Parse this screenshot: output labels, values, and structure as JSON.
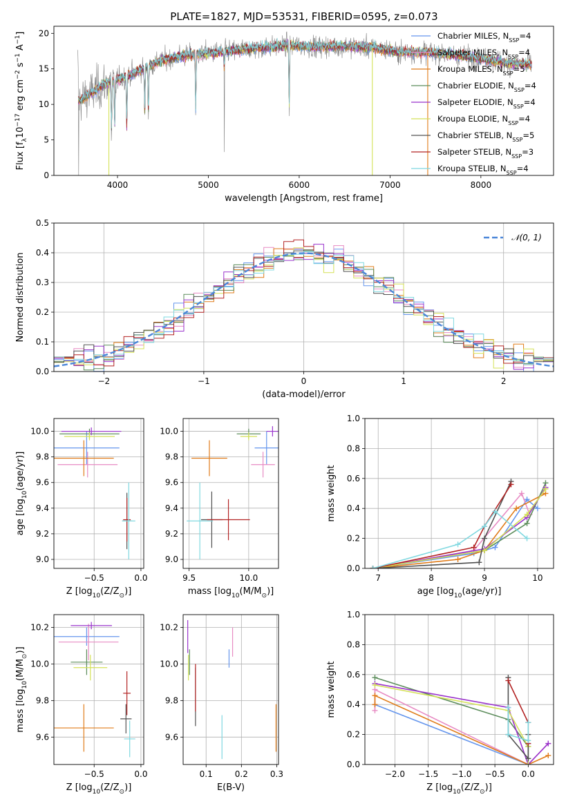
{
  "chart_data": [
    {
      "id": "spectrum",
      "type": "line",
      "title": "PLATE=1827, MJD=53531, FIBERID=0595, z=0.073",
      "xlabel": "wavelength [Angstrom, rest frame]",
      "ylabel": "Flux [f$_\\lambda$10$^{-17}$ erg cm$^{-2}$ s$^{-1}$ A$^{-1}$]",
      "xlim": [
        3300,
        8800
      ],
      "ylim": [
        0,
        21
      ],
      "xticks": [
        4000,
        5000,
        6000,
        7000,
        8000
      ],
      "yticks": [
        0,
        5,
        10,
        15,
        20
      ],
      "grid": false,
      "legend_position": "lower-right",
      "observed_color": "#808080",
      "continuum": [
        [
          3570,
          10.5
        ],
        [
          3700,
          11.5
        ],
        [
          3850,
          12.8
        ],
        [
          4000,
          13.5
        ],
        [
          4150,
          14.2
        ],
        [
          4300,
          15.2
        ],
        [
          4500,
          16.2
        ],
        [
          4700,
          16.8
        ],
        [
          5000,
          17.2
        ],
        [
          5300,
          17.6
        ],
        [
          5600,
          18.0
        ],
        [
          5900,
          18.3
        ],
        [
          6200,
          18.1
        ],
        [
          6500,
          18.2
        ],
        [
          6800,
          18.0
        ],
        [
          7100,
          17.4
        ],
        [
          7400,
          17.3
        ],
        [
          7700,
          17.0
        ],
        [
          8000,
          16.5
        ],
        [
          8300,
          15.8
        ],
        [
          8550,
          15.6
        ]
      ],
      "absorption_lines": [
        [
          3934,
          12.0
        ],
        [
          3969,
          11.5
        ],
        [
          4102,
          13.0
        ],
        [
          4300,
          12.0
        ],
        [
          4340,
          12.0
        ],
        [
          4861,
          14.0
        ],
        [
          5175,
          4.0
        ],
        [
          5890,
          15.0
        ]
      ],
      "series": [
        {
          "name": "Chabrier MILES, N$_{SSP}$=4",
          "color": "#6495ed"
        },
        {
          "name": "Salpeter MILES, N$_{SSP}$=4",
          "color": "#e78ac3"
        },
        {
          "name": "Kroupa MILES, N$_{SSP}$=5",
          "color": "#e07b18"
        },
        {
          "name": "Chabrier ELODIE, N$_{SSP}$=4",
          "color": "#5b8c5a"
        },
        {
          "name": "Salpeter ELODIE, N$_{SSP}$=4",
          "color": "#9932cc"
        },
        {
          "name": "Kroupa ELODIE, N$_{SSP}$=4",
          "color": "#d4e157"
        },
        {
          "name": "Chabrier STELIB, N$_{SSP}$=5",
          "color": "#505050"
        },
        {
          "name": "Salpeter STELIB, N$_{SSP}$=3",
          "color": "#b22222"
        },
        {
          "name": "Kroupa STELIB, N$_{SSP}$=4",
          "color": "#7fd8e0"
        }
      ]
    },
    {
      "id": "residuals",
      "type": "line",
      "xlabel": "(data-model)/error",
      "ylabel": "Normed distribution",
      "xlim": [
        -2.5,
        2.5
      ],
      "ylim": [
        0,
        0.5
      ],
      "xticks": [
        -2,
        -1,
        0,
        1,
        2
      ],
      "yticks": [
        0.0,
        0.1,
        0.2,
        0.3,
        0.4,
        0.5
      ],
      "grid": true,
      "legend_position": "top-right",
      "legend": "$\\mathcal{N}(0,1)$",
      "normal_color": "#4a86d8",
      "bin_width": 0.1,
      "bin_start": -2.5
    },
    {
      "id": "age-vs-Z",
      "type": "scatter",
      "xlabel": "Z [log$_{10}$($Z/Z_\\odot$)]",
      "ylabel": "age  [log$_{10}$($age/yr$)]",
      "xlim": [
        -0.93,
        0.03
      ],
      "ylim": [
        8.93,
        10.1
      ],
      "xticks": [
        -0.5,
        0.0
      ],
      "xticklabels": [
        "−0.5",
        "0.0"
      ],
      "yticks": [
        9.0,
        9.2,
        9.4,
        9.6,
        9.8,
        10.0
      ],
      "grid": true,
      "points": [
        {
          "x": -0.58,
          "xerr": 0.35,
          "y": 9.87,
          "yerr": 0.13,
          "color": "#6495ed"
        },
        {
          "x": -0.57,
          "xerr": 0.32,
          "y": 9.74,
          "yerr": 0.1,
          "color": "#e78ac3"
        },
        {
          "x": -0.61,
          "xerr": 0.32,
          "y": 9.79,
          "yerr": 0.14,
          "color": "#e07b18"
        },
        {
          "x": -0.55,
          "xerr": 0.32,
          "y": 9.98,
          "yerr": 0.04,
          "color": "#5b8c5a"
        },
        {
          "x": -0.53,
          "xerr": 0.32,
          "y": 10.0,
          "yerr": 0.03,
          "color": "#9932cc"
        },
        {
          "x": -0.55,
          "xerr": 0.27,
          "y": 9.96,
          "yerr": 0.03,
          "color": "#d4e157"
        },
        {
          "x": -0.15,
          "xerr": 0.05,
          "y": 9.3,
          "yerr": 0.22,
          "color": "#505050"
        },
        {
          "x": -0.15,
          "xerr": 0.04,
          "y": 9.31,
          "yerr": 0.17,
          "color": "#b22222"
        },
        {
          "x": -0.13,
          "xerr": 0.07,
          "y": 9.3,
          "yerr": 0.3,
          "color": "#7fd8e0"
        }
      ]
    },
    {
      "id": "age-vs-mass",
      "type": "scatter",
      "xlabel": "mass [log$_{10}$($M/M_\\odot$)]",
      "ylabel": "",
      "xlim": [
        9.45,
        10.25
      ],
      "ylim": [
        8.93,
        10.1
      ],
      "xticks": [
        9.5,
        10.0
      ],
      "xticklabels": [
        "9.5",
        "10.0"
      ],
      "yticks": [
        9.0,
        9.2,
        9.4,
        9.6,
        9.8,
        10.0
      ],
      "grid": true,
      "points": [
        {
          "x": 10.15,
          "xerr": 0.1,
          "y": 9.87,
          "yerr": 0.13,
          "color": "#6495ed"
        },
        {
          "x": 10.12,
          "xerr": 0.1,
          "y": 9.74,
          "yerr": 0.1,
          "color": "#e78ac3"
        },
        {
          "x": 9.67,
          "xerr": 0.15,
          "y": 9.79,
          "yerr": 0.14,
          "color": "#e07b18"
        },
        {
          "x": 10.0,
          "xerr": 0.1,
          "y": 9.98,
          "yerr": 0.04,
          "color": "#5b8c5a"
        },
        {
          "x": 10.2,
          "xerr": 0.05,
          "y": 10.0,
          "yerr": 0.04,
          "color": "#9932cc"
        },
        {
          "x": 10.0,
          "xerr": 0.07,
          "y": 9.96,
          "yerr": 0.03,
          "color": "#d4e157"
        },
        {
          "x": 9.69,
          "xerr": 0.09,
          "y": 9.31,
          "yerr": 0.22,
          "color": "#505050"
        },
        {
          "x": 9.83,
          "xerr": 0.18,
          "y": 9.31,
          "yerr": 0.16,
          "color": "#b22222"
        },
        {
          "x": 9.59,
          "xerr": 0.11,
          "y": 9.3,
          "yerr": 0.3,
          "color": "#7fd8e0"
        }
      ]
    },
    {
      "id": "weight-vs-age",
      "type": "line",
      "xlabel": "age  [log$_{10}$($age/yr$)]",
      "ylabel": "mass weight",
      "xlim": [
        6.75,
        10.3
      ],
      "ylim": [
        0,
        1
      ],
      "xticks": [
        7,
        8,
        9,
        10
      ],
      "yticks": [
        0.0,
        0.2,
        0.4,
        0.6,
        0.8,
        1.0
      ],
      "grid": true,
      "series": [
        {
          "color": "#6495ed",
          "x": [
            6.9,
            8.8,
            9.2,
            9.8,
            10.0
          ],
          "y": [
            0.0,
            0.1,
            0.14,
            0.46,
            0.4
          ]
        },
        {
          "color": "#e78ac3",
          "x": [
            6.9,
            8.8,
            9.7,
            9.85
          ],
          "y": [
            0.0,
            0.12,
            0.5,
            0.36
          ]
        },
        {
          "color": "#e07b18",
          "x": [
            6.9,
            8.5,
            9.0,
            9.6,
            10.15
          ],
          "y": [
            0.0,
            0.06,
            0.12,
            0.4,
            0.5
          ]
        },
        {
          "color": "#5b8c5a",
          "x": [
            6.9,
            9.0,
            9.8,
            10.15
          ],
          "y": [
            0.0,
            0.12,
            0.3,
            0.57
          ]
        },
        {
          "color": "#9932cc",
          "x": [
            6.9,
            9.0,
            9.8,
            10.15
          ],
          "y": [
            0.0,
            0.13,
            0.34,
            0.54
          ]
        },
        {
          "color": "#d4e157",
          "x": [
            6.9,
            9.0,
            9.8,
            10.15
          ],
          "y": [
            0.0,
            0.12,
            0.36,
            0.53
          ]
        },
        {
          "color": "#505050",
          "x": [
            6.9,
            8.9,
            9.0,
            9.5
          ],
          "y": [
            0.0,
            0.04,
            0.2,
            0.58
          ]
        },
        {
          "color": "#b22222",
          "x": [
            6.9,
            8.8,
            9.0,
            9.5
          ],
          "y": [
            0.0,
            0.14,
            0.28,
            0.56
          ]
        },
        {
          "color": "#7fd8e0",
          "x": [
            6.9,
            8.5,
            9.0,
            9.2,
            9.8
          ],
          "y": [
            0.0,
            0.16,
            0.28,
            0.38,
            0.2
          ]
        }
      ]
    },
    {
      "id": "mass-vs-Z",
      "type": "scatter",
      "xlabel": "Z [log$_{10}$($Z/Z_\\odot$)]",
      "ylabel": "mass [log$_{10}$($M/M_\\odot$)]",
      "xlim": [
        -0.93,
        0.03
      ],
      "ylim": [
        9.45,
        10.27
      ],
      "xticks": [
        -0.5,
        0.0
      ],
      "xticklabels": [
        "−0.5",
        "0.0"
      ],
      "yticks": [
        9.6,
        9.8,
        10.0,
        10.2
      ],
      "grid": true,
      "points": [
        {
          "x": -0.58,
          "xerr": 0.35,
          "y": 10.15,
          "yerr": 0.05,
          "color": "#6495ed"
        },
        {
          "x": -0.56,
          "xerr": 0.32,
          "y": 10.12,
          "yerr": 0.1,
          "color": "#e78ac3"
        },
        {
          "x": -0.61,
          "xerr": 0.32,
          "y": 9.65,
          "yerr": 0.13,
          "color": "#e07b18"
        },
        {
          "x": -0.58,
          "xerr": 0.17,
          "y": 10.01,
          "yerr": 0.07,
          "color": "#5b8c5a"
        },
        {
          "x": -0.53,
          "xerr": 0.22,
          "y": 10.21,
          "yerr": 0.02,
          "color": "#9932cc"
        },
        {
          "x": -0.54,
          "xerr": 0.18,
          "y": 9.98,
          "yerr": 0.07,
          "color": "#d4e157"
        },
        {
          "x": -0.16,
          "xerr": 0.06,
          "y": 9.7,
          "yerr": 0.08,
          "color": "#505050"
        },
        {
          "x": -0.15,
          "xerr": 0.04,
          "y": 9.84,
          "yerr": 0.12,
          "color": "#b22222"
        },
        {
          "x": -0.12,
          "xerr": 0.06,
          "y": 9.59,
          "yerr": 0.1,
          "color": "#7fd8e0"
        }
      ]
    },
    {
      "id": "mass-vs-ebv",
      "type": "scatter",
      "xlabel": "E(B-V)",
      "ylabel": "",
      "xlim": [
        0.035,
        0.305
      ],
      "ylim": [
        9.45,
        10.27
      ],
      "xticks": [
        0.1,
        0.2,
        0.3
      ],
      "xticklabels": [
        "0.1",
        "0.2",
        "0.3"
      ],
      "yticks": [
        9.6,
        9.8,
        10.0,
        10.2
      ],
      "grid": true,
      "points": [
        {
          "x": 0.165,
          "y": 10.03,
          "yerr": 0.05,
          "color": "#6495ed"
        },
        {
          "x": 0.175,
          "y": 10.12,
          "yerr": 0.08,
          "color": "#e78ac3"
        },
        {
          "x": 0.298,
          "y": 9.65,
          "yerr": 0.13,
          "color": "#e07b18"
        },
        {
          "x": 0.053,
          "y": 10.01,
          "yerr": 0.07,
          "color": "#5b8c5a"
        },
        {
          "x": 0.048,
          "y": 10.15,
          "yerr": 0.09,
          "color": "#9932cc"
        },
        {
          "x": 0.05,
          "y": 9.98,
          "yerr": 0.07,
          "color": "#d4e157"
        },
        {
          "x": 0.07,
          "y": 9.82,
          "yerr": 0.16,
          "color": "#505050"
        },
        {
          "x": 0.07,
          "y": 9.87,
          "yerr": 0.13,
          "color": "#b22222"
        },
        {
          "x": 0.145,
          "y": 9.6,
          "yerr": 0.12,
          "color": "#7fd8e0"
        }
      ]
    },
    {
      "id": "weight-vs-Z",
      "type": "line",
      "xlabel": "Z [log$_{10}$($Z/Z_\\odot$)]",
      "ylabel": "mass weight",
      "xlim": [
        -2.45,
        0.38
      ],
      "ylim": [
        0,
        1
      ],
      "xticks": [
        -2.0,
        -1.5,
        -1.0,
        -0.5,
        0.0
      ],
      "xticklabels": [
        "−2.0",
        "−1.5",
        "−1.0",
        "−0.5",
        "0.0"
      ],
      "yticks": [
        0.0,
        0.2,
        0.4,
        0.6,
        0.8,
        1.0
      ],
      "grid": true,
      "series": [
        {
          "color": "#6495ed",
          "x": [
            -2.3,
            0.0,
            0.0
          ],
          "y": [
            0.4,
            0.0,
            0.14
          ]
        },
        {
          "color": "#e78ac3",
          "x": [
            -2.3,
            -2.3,
            0.0,
            0.3
          ],
          "y": [
            0.36,
            0.5,
            0.0,
            0.14
          ]
        },
        {
          "color": "#e07b18",
          "x": [
            -2.3,
            -2.3,
            0.0,
            0.3
          ],
          "y": [
            0.4,
            0.46,
            0.0,
            0.06
          ]
        },
        {
          "color": "#5b8c5a",
          "x": [
            -2.3,
            -0.3,
            0.0,
            0.0
          ],
          "y": [
            0.58,
            0.3,
            0.12,
            0.0
          ]
        },
        {
          "color": "#9932cc",
          "x": [
            -2.3,
            -0.3,
            0.0,
            0.3
          ],
          "y": [
            0.54,
            0.38,
            0.0,
            0.14
          ]
        },
        {
          "color": "#d4e157",
          "x": [
            -2.3,
            -0.3,
            0.0,
            0.0
          ],
          "y": [
            0.53,
            0.36,
            0.12,
            0.0
          ]
        },
        {
          "color": "#505050",
          "x": [
            -0.3,
            -0.3,
            0.0,
            0.0
          ],
          "y": [
            0.58,
            0.2,
            0.04,
            0.2
          ]
        },
        {
          "color": "#b22222",
          "x": [
            -0.3,
            0.0,
            0.0
          ],
          "y": [
            0.56,
            0.28,
            0.14
          ]
        },
        {
          "color": "#7fd8e0",
          "x": [
            -0.3,
            -0.3,
            0.0,
            0.0
          ],
          "y": [
            0.38,
            0.2,
            0.16,
            0.28
          ]
        }
      ]
    }
  ]
}
